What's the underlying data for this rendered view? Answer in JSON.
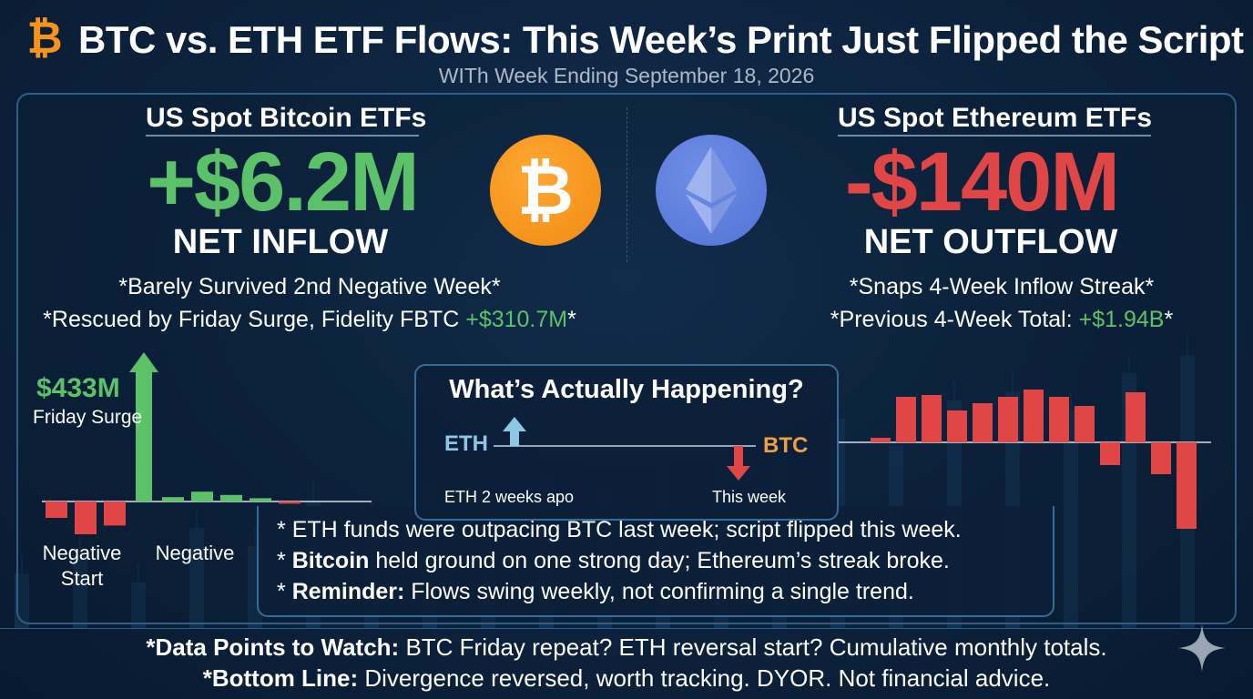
{
  "header": {
    "title": "BTC vs. ETH ETF Flows: This Week’s Print Just Flipped the Script",
    "subtitle": "WITh Week Ending September 18, 2026"
  },
  "btc": {
    "heading": "US Spot Bitcoin ETFs",
    "amount": "+$6.2M",
    "flow_label": "NET INFLOW",
    "note1": "*Barely Survived 2nd Negative Week*",
    "note2_prefix": "*Rescued by Friday Surge, Fidelity FBTC ",
    "note2_value": "+$310.7M",
    "note2_suffix": "*",
    "coin_icon": "bitcoin-icon"
  },
  "eth": {
    "heading": "US Spot Ethereum ETFs",
    "amount": "-$140M",
    "flow_label": "NET OUTFLOW",
    "note1": "*Snaps 4-Week Inflow Streak*",
    "note2_prefix": "*Previous 4-Week Total: ",
    "note2_value": "+$1.94B",
    "note2_suffix": "*",
    "coin_icon": "ethereum-icon"
  },
  "btc_chart": {
    "surge_value": "$433M",
    "surge_label": "Friday Surge",
    "left_label_line1": "Negative",
    "left_label_line2": "Start",
    "right_label": "Negative"
  },
  "what_happening": {
    "title": "What’s Actually Happening?",
    "eth_label": "ETH",
    "btc_label": "BTC",
    "left_caption": "ETH 2 weeks apo",
    "right_caption": "This week",
    "bullets": [
      {
        "bold": "",
        "text": "ETH funds were outpacing BTC last week; script flipped this week."
      },
      {
        "bold": "Bitcoin",
        "text": " held ground on one strong day; Ethereum’s streak broke."
      },
      {
        "bold": "Reminder:",
        "text": " Flows swing weekly, not confirming a single trend."
      }
    ]
  },
  "footer": {
    "line1_bold": "*Data Points to Watch:",
    "line1_text": " BTC Friday repeat? ETH reversal start? Cumulative monthly totals.",
    "line2_bold": "*Bottom Line:",
    "line2_text": " Divergence reversed, worth tracking. DYOR. Not financial advice."
  },
  "colors": {
    "green": "#5cc26a",
    "red": "#e04646",
    "btc_orange": "#f7931a",
    "eth_blue": "#5c7ddd",
    "arrow_blue": "#8ec6e6"
  },
  "chart_data": [
    {
      "type": "bar",
      "name": "BTC ETF daily flows (illustrative)",
      "values": [
        -15,
        -30,
        -22,
        433,
        4,
        9,
        6,
        3,
        -2
      ],
      "highlight_index": 3
    },
    {
      "type": "bar",
      "name": "ETH ETF flows (illustrative)",
      "values": [
        5,
        50,
        52,
        35,
        43,
        50,
        58,
        50,
        40,
        -25,
        55,
        -35,
        -95
      ]
    }
  ]
}
